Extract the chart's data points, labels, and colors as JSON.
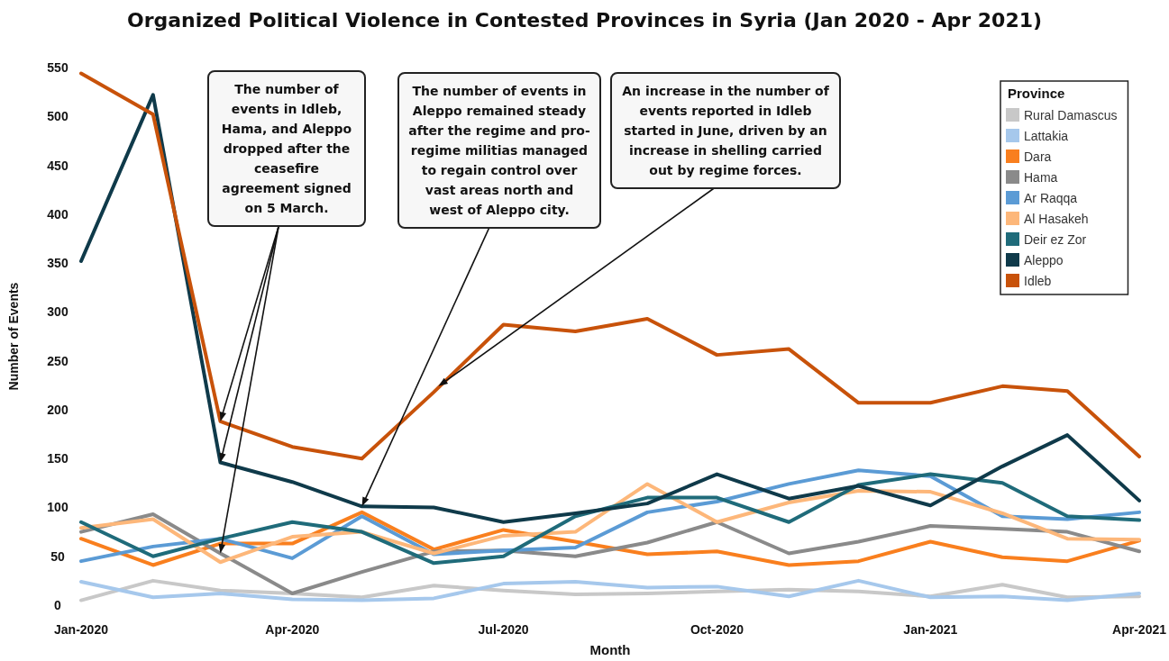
{
  "chart_data": {
    "type": "line",
    "title": "Organized Political Violence in Contested Provinces in Syria (Jan 2020 - Apr 2021)",
    "xlabel": "Month",
    "ylabel": "Number of Events",
    "legend_title": "Province",
    "legend": "top right",
    "grid": false,
    "marker": "none",
    "line_style": "solid",
    "x": [
      "2020-01",
      "2020-02",
      "2020-03",
      "2020-04",
      "2020-05",
      "2020-06",
      "2020-07",
      "2020-08",
      "2020-09",
      "2020-10",
      "2020-11",
      "2020-12",
      "2021-01",
      "2021-02",
      "2021-03",
      "2021-04"
    ],
    "xlim": [
      "2020-01",
      "2021-04"
    ],
    "xticks": [
      {
        "value": "2020-01",
        "label": "Jan-2020"
      },
      {
        "value": "2020-04",
        "label": "Apr-2020"
      },
      {
        "value": "2020-07",
        "label": "Jul-2020"
      },
      {
        "value": "2020-10",
        "label": "Oct-2020"
      },
      {
        "value": "2021-01",
        "label": "Jan-2021"
      },
      {
        "value": "2021-04",
        "label": "Apr-2021"
      }
    ],
    "ylim": [
      0,
      550
    ],
    "yticks": [
      0,
      50,
      100,
      150,
      200,
      250,
      300,
      350,
      400,
      450,
      500,
      550
    ],
    "series": [
      {
        "name": "Rural Damascus",
        "color": "#c8c8c8",
        "values": [
          5,
          25,
          15,
          12,
          8,
          20,
          15,
          11,
          12,
          14,
          16,
          14,
          9,
          21,
          8,
          9
        ]
      },
      {
        "name": "Lattakia",
        "color": "#a6c8ec",
        "values": [
          24,
          8,
          12,
          6,
          5,
          7,
          22,
          24,
          18,
          19,
          9,
          25,
          8,
          9,
          5,
          12
        ]
      },
      {
        "name": "Dara",
        "color": "#f97f1e",
        "values": [
          68,
          41,
          63,
          63,
          95,
          57,
          77,
          65,
          52,
          55,
          41,
          45,
          65,
          49,
          45,
          66
        ]
      },
      {
        "name": "Hama",
        "color": "#8a8a8a",
        "values": [
          75,
          93,
          53,
          12,
          34,
          55,
          56,
          50,
          64,
          85,
          53,
          65,
          81,
          78,
          75,
          55
        ]
      },
      {
        "name": "Ar Raqqa",
        "color": "#5b9bd5",
        "values": [
          45,
          60,
          68,
          48,
          91,
          52,
          56,
          59,
          95,
          106,
          124,
          138,
          132,
          91,
          88,
          95
        ]
      },
      {
        "name": "Al Hasakeh",
        "color": "#fdb77a",
        "values": [
          79,
          88,
          44,
          70,
          75,
          53,
          71,
          75,
          124,
          85,
          105,
          117,
          116,
          94,
          68,
          67
        ]
      },
      {
        "name": "Deir ez Zor",
        "color": "#1f6b7a",
        "values": [
          85,
          50,
          68,
          85,
          75,
          43,
          50,
          91,
          110,
          110,
          85,
          123,
          134,
          125,
          91,
          87
        ]
      },
      {
        "name": "Aleppo",
        "color": "#0f3a4a",
        "values": [
          352,
          522,
          146,
          126,
          101,
          100,
          85,
          94,
          104,
          134,
          109,
          122,
          102,
          142,
          174,
          107
        ]
      },
      {
        "name": "Idleb",
        "color": "#c8520a",
        "values": [
          544,
          502,
          188,
          162,
          150,
          218,
          287,
          280,
          293,
          256,
          262,
          207,
          207,
          224,
          219,
          152
        ]
      }
    ],
    "annotations": [
      {
        "text": "The number of events in Idleb, Hama, and Aleppo dropped after the ceasefire agreement signed on 5 March.",
        "x": "2020-03",
        "y": 188
      },
      {
        "text": "The number of events in Aleppo remained steady after the regime and pro-regime militias managed to regain control over vast areas north and west of Aleppo city.",
        "x": "2020-05",
        "y": 101
      },
      {
        "text": "An increase in the number of events reported in Idleb started in June, driven by an increase in shelling carried out by regime forces.",
        "x": "2020-06-03",
        "y": 224
      }
    ]
  }
}
